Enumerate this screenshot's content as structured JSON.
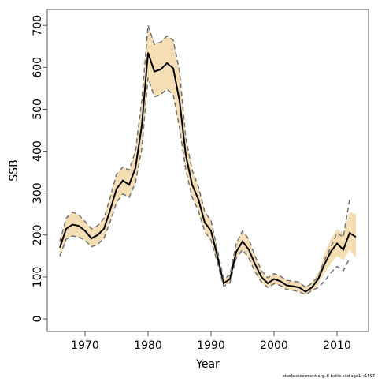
{
  "chart_data": {
    "type": "line",
    "x_label": "Year",
    "y_label": "SSB",
    "caption": "stockassessment.org, E baltic cod age1, r1597",
    "x": [
      1966,
      1967,
      1968,
      1969,
      1970,
      1971,
      1972,
      1973,
      1974,
      1975,
      1976,
      1977,
      1978,
      1979,
      1980,
      1981,
      1982,
      1983,
      1984,
      1985,
      1986,
      1987,
      1988,
      1989,
      1990,
      1991,
      1992,
      1993,
      1994,
      1995,
      1996,
      1997,
      1998,
      1999,
      2000,
      2001,
      2002,
      2003,
      2004,
      2005,
      2006,
      2007,
      2008,
      2009,
      2010,
      2011,
      2012,
      2013
    ],
    "band": {
      "color": "#f5deb3",
      "upper": [
        185,
        240,
        255,
        248,
        232,
        215,
        222,
        240,
        290,
        345,
        362,
        355,
        400,
        520,
        700,
        655,
        660,
        675,
        665,
        590,
        430,
        355,
        315,
        255,
        235,
        165,
        95,
        105,
        180,
        210,
        190,
        150,
        115,
        98,
        108,
        102,
        92,
        90,
        88,
        75,
        88,
        110,
        155,
        190,
        215,
        205,
        255,
        250
      ],
      "lower": [
        150,
        190,
        198,
        195,
        188,
        172,
        178,
        192,
        232,
        278,
        298,
        290,
        325,
        405,
        575,
        530,
        535,
        548,
        535,
        455,
        355,
        290,
        258,
        208,
        188,
        135,
        78,
        86,
        145,
        165,
        145,
        112,
        88,
        75,
        84,
        80,
        70,
        68,
        65,
        58,
        65,
        82,
        108,
        132,
        150,
        140,
        165,
        145
      ]
    },
    "series": [
      {
        "color": "#000000",
        "dashed": false,
        "width": 2,
        "values": [
          170,
          215,
          225,
          222,
          210,
          192,
          200,
          215,
          260,
          310,
          330,
          320,
          360,
          460,
          635,
          590,
          595,
          610,
          598,
          520,
          390,
          320,
          285,
          230,
          210,
          150,
          85,
          95,
          160,
          185,
          165,
          130,
          100,
          85,
          95,
          90,
          80,
          78,
          75,
          65,
          75,
          95,
          130,
          160,
          180,
          165,
          205,
          195
        ]
      },
      {
        "color": "#707070",
        "dashed": true,
        "width": 1.5,
        "values": [
          185,
          240,
          255,
          248,
          232,
          215,
          222,
          240,
          290,
          345,
          362,
          355,
          400,
          520,
          700,
          655,
          660,
          675,
          665,
          590,
          430,
          355,
          315,
          255,
          235,
          165,
          95,
          105,
          180,
          210,
          190,
          150,
          115,
          98,
          108,
          102,
          92,
          90,
          88,
          75,
          85,
          100,
          140,
          170,
          205,
          195,
          285,
          null
        ]
      },
      {
        "color": "#707070",
        "dashed": true,
        "width": 1.5,
        "values": [
          150,
          190,
          198,
          195,
          188,
          172,
          178,
          192,
          232,
          278,
          298,
          290,
          325,
          405,
          575,
          530,
          535,
          548,
          535,
          455,
          355,
          290,
          258,
          208,
          188,
          135,
          78,
          86,
          145,
          165,
          145,
          112,
          88,
          75,
          84,
          80,
          70,
          68,
          65,
          58,
          68,
          75,
          90,
          110,
          125,
          115,
          145,
          null
        ]
      }
    ],
    "xlim": [
      1964,
      2015
    ],
    "ylim": [
      -30,
      738
    ],
    "xticks": [
      1970,
      1980,
      1990,
      2000,
      2010
    ],
    "yticks": [
      0,
      100,
      200,
      300,
      400,
      500,
      600,
      700
    ]
  }
}
